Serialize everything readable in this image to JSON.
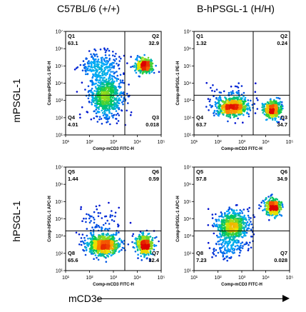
{
  "columns": [
    "C57BL/6 (+/+)",
    "B-hPSGL-1 (H/H)"
  ],
  "rows": [
    "mPSGL-1",
    "hPSGL-1"
  ],
  "bottom_label": "mCD3e",
  "chart_data": [
    {
      "type": "scatter",
      "panel": "C57BL/6 (+/+) mPSGL-1",
      "xlabel": "Comp-mCD3 FITC-H",
      "ylabel": "Comp-mPSGL-1 PE-H",
      "xscale": "log",
      "yscale": "log",
      "xlim": [
        10,
        100000
      ],
      "ylim": [
        10,
        10000000
      ],
      "x_ticks": [
        "10¹",
        "10²",
        "10³",
        "10⁴",
        "10⁵"
      ],
      "y_ticks": [
        "10¹",
        "10²",
        "10³",
        "10⁴",
        "10⁵",
        "10⁶",
        "10⁷"
      ],
      "quadrants": [
        {
          "name": "Q1",
          "value": "63.1",
          "pos": "top-left"
        },
        {
          "name": "Q2",
          "value": "32.9",
          "pos": "top-right"
        },
        {
          "name": "Q3",
          "value": "0.018",
          "pos": "bottom-right"
        },
        {
          "name": "Q4",
          "value": "4.01",
          "pos": "bottom-left"
        }
      ],
      "gate": {
        "x": 3000,
        "y": 2000
      },
      "populations": [
        {
          "x": 500,
          "y": 2000,
          "sx": 0.35,
          "sy": 0.55,
          "n": 650
        },
        {
          "x": 20000,
          "y": 100000,
          "sx": 0.18,
          "sy": 0.2,
          "n": 380
        },
        {
          "x": 300,
          "y": 100000,
          "sx": 0.45,
          "sy": 0.45,
          "n": 250
        },
        {
          "x": 400,
          "y": 150,
          "sx": 0.4,
          "sy": 0.3,
          "n": 40
        }
      ]
    },
    {
      "type": "scatter",
      "panel": "B-hPSGL-1 (H/H) mPSGL-1",
      "xlabel": "Comp-mCD3 FITC-H",
      "ylabel": "Comp-mPSGL-1 PE-H",
      "xscale": "log",
      "yscale": "log",
      "xlim": [
        10,
        100000
      ],
      "ylim": [
        10,
        10000000
      ],
      "x_ticks": [
        "10¹",
        "10²",
        "10³",
        "10⁴",
        "10⁵"
      ],
      "y_ticks": [
        "10¹",
        "10²",
        "10³",
        "10⁴",
        "10⁵",
        "10⁶",
        "10⁷"
      ],
      "quadrants": [
        {
          "name": "Q1",
          "value": "1.32",
          "pos": "top-left"
        },
        {
          "name": "Q2",
          "value": "0.24",
          "pos": "top-right"
        },
        {
          "name": "Q3",
          "value": "34.7",
          "pos": "bottom-right"
        },
        {
          "name": "Q4",
          "value": "63.7",
          "pos": "bottom-left"
        }
      ],
      "gate": {
        "x": 3000,
        "y": 2000
      },
      "populations": [
        {
          "x": 400,
          "y": 400,
          "sx": 0.35,
          "sy": 0.25,
          "n": 650
        },
        {
          "x": 20000,
          "y": 300,
          "sx": 0.18,
          "sy": 0.25,
          "n": 400
        },
        {
          "x": 300,
          "y": 2000,
          "sx": 0.5,
          "sy": 0.35,
          "n": 60
        }
      ]
    },
    {
      "type": "scatter",
      "panel": "C57BL/6 (+/+) hPSGL-1",
      "xlabel": "Comp-mCD3 FITC-H",
      "ylabel": "Comp-hPSGL-1 APC-H",
      "xscale": "log",
      "yscale": "log",
      "xlim": [
        10,
        100000
      ],
      "ylim": [
        10,
        10000000
      ],
      "x_ticks": [
        "10¹",
        "10²",
        "10³",
        "10⁴",
        "10⁵"
      ],
      "y_ticks": [
        "10¹",
        "10²",
        "10³",
        "10⁴",
        "10⁵",
        "10⁶",
        "10⁷"
      ],
      "quadrants": [
        {
          "name": "Q5",
          "value": "1.44",
          "pos": "top-left"
        },
        {
          "name": "Q6",
          "value": "0.59",
          "pos": "top-right"
        },
        {
          "name": "Q7",
          "value": "32.4",
          "pos": "bottom-right"
        },
        {
          "name": "Q8",
          "value": "65.6",
          "pos": "bottom-left"
        }
      ],
      "gate": {
        "x": 3000,
        "y": 2000
      },
      "populations": [
        {
          "x": 400,
          "y": 300,
          "sx": 0.35,
          "sy": 0.3,
          "n": 650
        },
        {
          "x": 20000,
          "y": 300,
          "sx": 0.18,
          "sy": 0.3,
          "n": 400
        },
        {
          "x": 300,
          "y": 5000,
          "sx": 0.5,
          "sy": 0.5,
          "n": 80
        }
      ]
    },
    {
      "type": "scatter",
      "panel": "B-hPSGL-1 (H/H) hPSGL-1",
      "xlabel": "Comp-mCD3 FITC-H",
      "ylabel": "Comp-hPSGL-1 APC-H",
      "xscale": "log",
      "yscale": "log",
      "xlim": [
        10,
        100000
      ],
      "ylim": [
        10,
        10000000
      ],
      "x_ticks": [
        "10¹",
        "10²",
        "10³",
        "10⁴",
        "10⁵"
      ],
      "y_ticks": [
        "10¹",
        "10²",
        "10³",
        "10⁴",
        "10⁵",
        "10⁶",
        "10⁷"
      ],
      "quadrants": [
        {
          "name": "Q5",
          "value": "57.8",
          "pos": "top-left"
        },
        {
          "name": "Q6",
          "value": "34.9",
          "pos": "top-right"
        },
        {
          "name": "Q7",
          "value": "0.028",
          "pos": "bottom-right"
        },
        {
          "name": "Q8",
          "value": "7.23",
          "pos": "bottom-left"
        }
      ],
      "gate": {
        "x": 3000,
        "y": 2000
      },
      "populations": [
        {
          "x": 400,
          "y": 4000,
          "sx": 0.35,
          "sy": 0.45,
          "n": 650
        },
        {
          "x": 20000,
          "y": 50000,
          "sx": 0.18,
          "sy": 0.25,
          "n": 380
        },
        {
          "x": 300,
          "y": 200,
          "sx": 0.4,
          "sy": 0.3,
          "n": 120
        }
      ]
    }
  ]
}
